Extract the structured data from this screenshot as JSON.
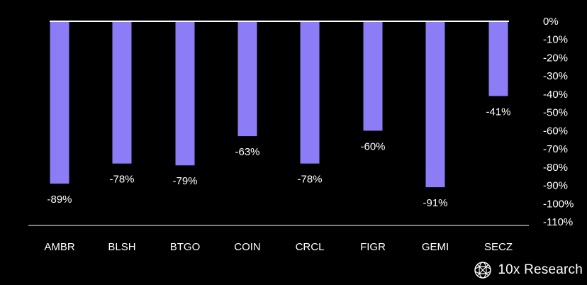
{
  "chart_data": {
    "type": "bar",
    "categories": [
      "AMBR",
      "BLSH",
      "BTGO",
      "COIN",
      "CRCL",
      "FIGR",
      "GEMI",
      "SECZ"
    ],
    "values": [
      -89,
      -78,
      -79,
      -63,
      -78,
      -60,
      -91,
      -41
    ],
    "value_labels": [
      "-89%",
      "-78%",
      "-79%",
      "-63%",
      "-78%",
      "-60%",
      "-91%",
      "-41%"
    ],
    "ylim": [
      -110,
      0
    ],
    "yticks": [
      0,
      -10,
      -20,
      -30,
      -40,
      -50,
      -60,
      -70,
      -80,
      -90,
      -100,
      -110
    ],
    "ytick_labels": [
      "0%",
      "-10%",
      "-20%",
      "-30%",
      "-40%",
      "-50%",
      "-60%",
      "-70%",
      "-80%",
      "-90%",
      "-100%",
      "-110%"
    ],
    "y_axis_side": "right",
    "grid": false,
    "bar_color": "#8c7cf5",
    "background": "#000000",
    "text_color": "#ffffff"
  },
  "branding": {
    "logo_icon": "globe-mesh-icon",
    "text": "10x Research"
  }
}
